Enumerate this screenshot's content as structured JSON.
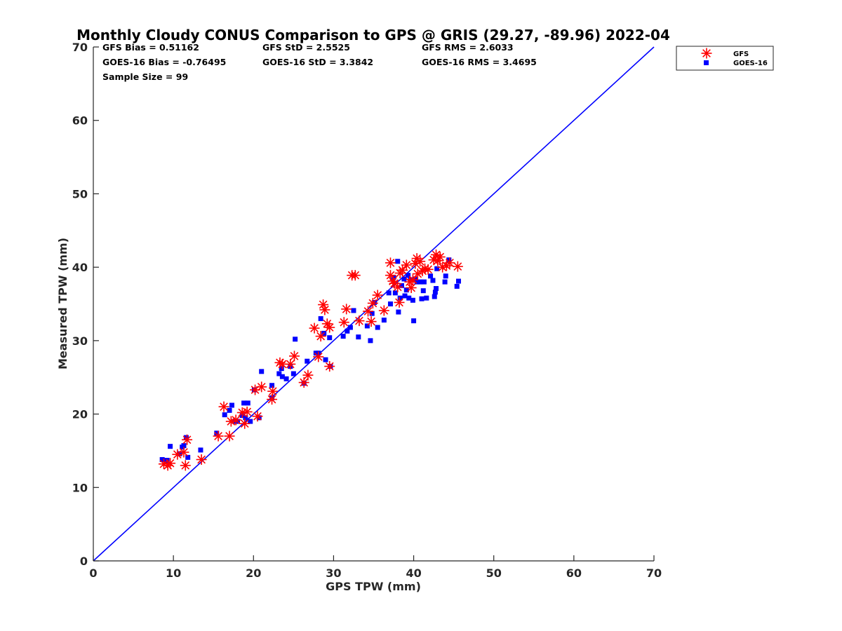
{
  "chart_data": {
    "type": "scatter",
    "title": "Monthly Cloudy CONUS Comparison to GPS @ GRIS (29.27, -89.96) 2022-04",
    "xlabel": "GPS TPW (mm)",
    "ylabel": "Measured TPW (mm)",
    "xlim": [
      0,
      70
    ],
    "ylim": [
      0,
      70
    ],
    "xticks": [
      0,
      10,
      20,
      30,
      40,
      50,
      60,
      70
    ],
    "yticks": [
      0,
      10,
      20,
      30,
      40,
      50,
      60,
      70
    ],
    "grid": false,
    "legend_position": "top-right",
    "stats": [
      [
        "GFS Bias = 0.51162",
        "GFS StD = 2.5525",
        "GFS RMS = 2.6033"
      ],
      [
        "GOES-16 Bias = -0.76495",
        "GOES-16 StD = 3.3842",
        "GOES-16 RMS = 3.4695"
      ],
      [
        "Sample Size = 99",
        "",
        ""
      ]
    ],
    "reference_line": {
      "name": "1:1",
      "x": [
        0,
        70
      ],
      "y": [
        0,
        70
      ],
      "color": "#0000ff"
    },
    "series": [
      {
        "name": "GFS",
        "marker": "asterisk",
        "color": "#ff0000",
        "points": [
          [
            8.8,
            13.2
          ],
          [
            9.3,
            13.0
          ],
          [
            9.6,
            13.3
          ],
          [
            10.5,
            14.5
          ],
          [
            11.3,
            14.8
          ],
          [
            11.5,
            13.0
          ],
          [
            11.7,
            16.5
          ],
          [
            13.5,
            13.8
          ],
          [
            15.6,
            17.0
          ],
          [
            16.3,
            21.0
          ],
          [
            17.0,
            17.0
          ],
          [
            17.2,
            19.0
          ],
          [
            17.8,
            19.2
          ],
          [
            18.6,
            20.2
          ],
          [
            18.9,
            18.7
          ],
          [
            19.2,
            20.3
          ],
          [
            20.2,
            23.3
          ],
          [
            20.5,
            19.7
          ],
          [
            21.0,
            23.7
          ],
          [
            22.3,
            22.0
          ],
          [
            22.4,
            23.1
          ],
          [
            23.3,
            27.0
          ],
          [
            23.6,
            26.8
          ],
          [
            24.6,
            26.8
          ],
          [
            25.1,
            27.9
          ],
          [
            26.3,
            24.3
          ],
          [
            26.8,
            25.3
          ],
          [
            27.6,
            31.7
          ],
          [
            28.1,
            27.8
          ],
          [
            28.4,
            30.6
          ],
          [
            28.7,
            34.9
          ],
          [
            28.9,
            34.2
          ],
          [
            29.2,
            32.3
          ],
          [
            29.5,
            31.8
          ],
          [
            29.5,
            26.5
          ],
          [
            31.3,
            32.5
          ],
          [
            31.6,
            34.3
          ],
          [
            32.3,
            38.9
          ],
          [
            32.7,
            38.9
          ],
          [
            33.2,
            32.7
          ],
          [
            34.3,
            34.0
          ],
          [
            34.7,
            32.6
          ],
          [
            34.9,
            35.1
          ],
          [
            35.5,
            36.2
          ],
          [
            36.3,
            34.1
          ],
          [
            37.1,
            40.6
          ],
          [
            37.1,
            38.9
          ],
          [
            37.4,
            38.1
          ],
          [
            37.6,
            37.8
          ],
          [
            38.0,
            37.3
          ],
          [
            38.2,
            35.2
          ],
          [
            38.3,
            39.2
          ],
          [
            38.6,
            39.6
          ],
          [
            39.1,
            40.3
          ],
          [
            39.5,
            38.0
          ],
          [
            39.7,
            37.2
          ],
          [
            39.9,
            38.3
          ],
          [
            40.2,
            40.5
          ],
          [
            40.4,
            41.2
          ],
          [
            40.5,
            39.1
          ],
          [
            40.8,
            40.8
          ],
          [
            41.1,
            39.5
          ],
          [
            41.4,
            39.8
          ],
          [
            41.8,
            39.7
          ],
          [
            42.5,
            41.0
          ],
          [
            42.8,
            41.7
          ],
          [
            43.0,
            40.9
          ],
          [
            43.3,
            41.4
          ],
          [
            43.6,
            40.0
          ],
          [
            44.1,
            40.2
          ],
          [
            44.5,
            40.6
          ],
          [
            45.5,
            40.1
          ]
        ]
      },
      {
        "name": "GOES-16",
        "marker": "square",
        "color": "#0000ff",
        "points": [
          [
            8.6,
            13.8
          ],
          [
            9.2,
            13.7
          ],
          [
            9.6,
            15.6
          ],
          [
            10.8,
            14.6
          ],
          [
            11.1,
            15.5
          ],
          [
            11.3,
            15.7
          ],
          [
            11.6,
            16.8
          ],
          [
            11.8,
            14.1
          ],
          [
            13.4,
            15.1
          ],
          [
            15.4,
            17.4
          ],
          [
            16.4,
            19.9
          ],
          [
            17.0,
            20.5
          ],
          [
            17.3,
            21.2
          ],
          [
            17.6,
            19.0
          ],
          [
            18.0,
            19.0
          ],
          [
            18.6,
            19.8
          ],
          [
            18.8,
            21.5
          ],
          [
            19.0,
            19.5
          ],
          [
            19.3,
            21.5
          ],
          [
            19.6,
            19.0
          ],
          [
            20.1,
            23.3
          ],
          [
            20.7,
            19.5
          ],
          [
            21.0,
            25.8
          ],
          [
            22.3,
            22.2
          ],
          [
            22.3,
            23.9
          ],
          [
            23.2,
            25.5
          ],
          [
            23.5,
            26.2
          ],
          [
            23.6,
            25.1
          ],
          [
            24.1,
            24.8
          ],
          [
            24.6,
            26.5
          ],
          [
            25.0,
            25.5
          ],
          [
            25.2,
            30.2
          ],
          [
            26.3,
            24.2
          ],
          [
            26.7,
            27.2
          ],
          [
            27.8,
            28.3
          ],
          [
            28.1,
            28.3
          ],
          [
            28.4,
            33.0
          ],
          [
            28.8,
            31.0
          ],
          [
            29.0,
            27.4
          ],
          [
            29.5,
            30.4
          ],
          [
            29.6,
            26.5
          ],
          [
            31.2,
            30.6
          ],
          [
            31.7,
            31.3
          ],
          [
            32.1,
            31.8
          ],
          [
            32.5,
            34.1
          ],
          [
            33.1,
            30.5
          ],
          [
            34.2,
            32.0
          ],
          [
            34.6,
            30.0
          ],
          [
            34.8,
            33.7
          ],
          [
            35.1,
            35.2
          ],
          [
            35.5,
            31.8
          ],
          [
            36.3,
            32.8
          ],
          [
            36.9,
            36.5
          ],
          [
            37.1,
            35.0
          ],
          [
            37.5,
            38.6
          ],
          [
            37.7,
            36.5
          ],
          [
            38.0,
            40.8
          ],
          [
            38.1,
            33.9
          ],
          [
            38.3,
            35.8
          ],
          [
            38.5,
            37.5
          ],
          [
            38.8,
            38.4
          ],
          [
            38.9,
            36.1
          ],
          [
            39.1,
            36.9
          ],
          [
            39.3,
            38.9
          ],
          [
            39.4,
            35.8
          ],
          [
            39.6,
            38.3
          ],
          [
            39.9,
            35.5
          ],
          [
            40.0,
            32.7
          ],
          [
            40.2,
            38.4
          ],
          [
            40.4,
            38.0
          ],
          [
            40.8,
            38.0
          ],
          [
            41.0,
            35.7
          ],
          [
            41.2,
            36.8
          ],
          [
            41.3,
            38.0
          ],
          [
            41.6,
            35.8
          ],
          [
            42.1,
            38.8
          ],
          [
            42.4,
            38.2
          ],
          [
            42.6,
            36.0
          ],
          [
            42.7,
            36.6
          ],
          [
            42.8,
            37.1
          ],
          [
            42.9,
            39.8
          ],
          [
            43.9,
            38.0
          ],
          [
            44.0,
            38.8
          ],
          [
            44.4,
            41.0
          ],
          [
            45.4,
            37.4
          ],
          [
            45.6,
            38.1
          ]
        ]
      }
    ]
  }
}
